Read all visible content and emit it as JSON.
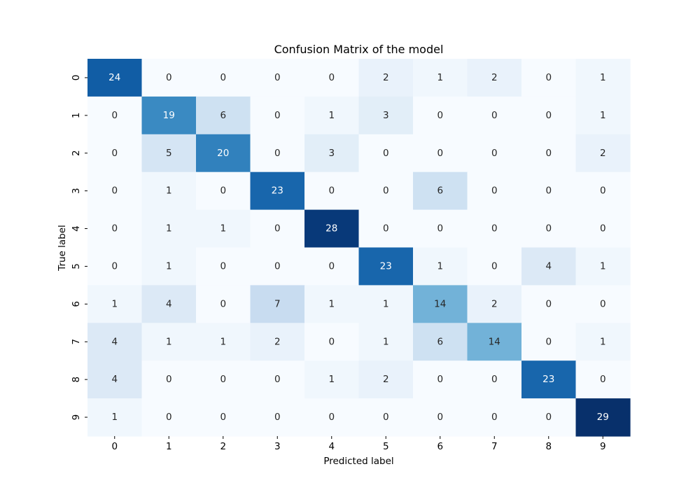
{
  "chart_data": {
    "type": "heatmap",
    "title": "Confusion Matrix of the model",
    "xlabel": "Predicted label",
    "ylabel": "True label",
    "x_categories": [
      "0",
      "1",
      "2",
      "3",
      "4",
      "5",
      "6",
      "7",
      "8",
      "9"
    ],
    "y_categories": [
      "0",
      "1",
      "2",
      "3",
      "4",
      "5",
      "6",
      "7",
      "8",
      "9"
    ],
    "matrix": [
      [
        24,
        0,
        0,
        0,
        0,
        2,
        1,
        2,
        0,
        1
      ],
      [
        0,
        19,
        6,
        0,
        1,
        3,
        0,
        0,
        0,
        1
      ],
      [
        0,
        5,
        20,
        0,
        3,
        0,
        0,
        0,
        0,
        2
      ],
      [
        0,
        1,
        0,
        23,
        0,
        0,
        6,
        0,
        0,
        0
      ],
      [
        0,
        1,
        1,
        0,
        28,
        0,
        0,
        0,
        0,
        0
      ],
      [
        0,
        1,
        0,
        0,
        0,
        23,
        1,
        0,
        4,
        1
      ],
      [
        1,
        4,
        0,
        7,
        1,
        1,
        14,
        2,
        0,
        0
      ],
      [
        4,
        1,
        1,
        2,
        0,
        1,
        6,
        14,
        0,
        1
      ],
      [
        4,
        0,
        0,
        0,
        1,
        2,
        0,
        0,
        23,
        0
      ],
      [
        1,
        0,
        0,
        0,
        0,
        0,
        0,
        0,
        0,
        29
      ]
    ],
    "colormap": "Blues",
    "value_range": [
      0,
      29
    ],
    "colorbar": false,
    "annotations": true
  }
}
